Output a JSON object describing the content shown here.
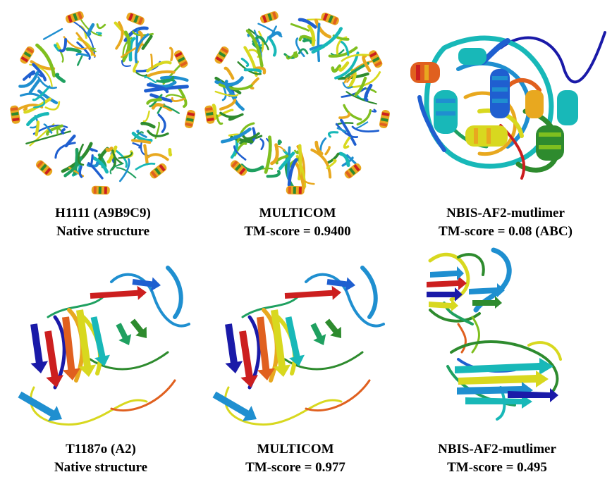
{
  "figure": {
    "panels": [
      {
        "id": "h1111-native",
        "line1": "H1111 (A9B9C9)",
        "line2": "Native structure"
      },
      {
        "id": "h1111-multicom",
        "line1": "MULTICOM",
        "line2": "TM-score = 0.9400"
      },
      {
        "id": "h1111-nbis",
        "line1": "NBIS-AF2-mutlimer",
        "line2": "TM-score = 0.08 (ABC)"
      },
      {
        "id": "t1187o-native",
        "line1": "T1187o (A2)",
        "line2": "Native structure"
      },
      {
        "id": "t1187o-multicom",
        "line1": "MULTICOM",
        "line2": "TM-score = 0.977"
      },
      {
        "id": "t1187o-nbis",
        "line1": "NBIS-AF2-mutlimer",
        "line2": "TM-score = 0.495"
      }
    ],
    "palette": [
      "#1a1aa8",
      "#1f5fd0",
      "#1f8fd0",
      "#18b8b8",
      "#1fa060",
      "#2e8b2e",
      "#7fbf1f",
      "#d8d81f",
      "#e8a81f",
      "#e0601f",
      "#cc1f1f"
    ]
  }
}
